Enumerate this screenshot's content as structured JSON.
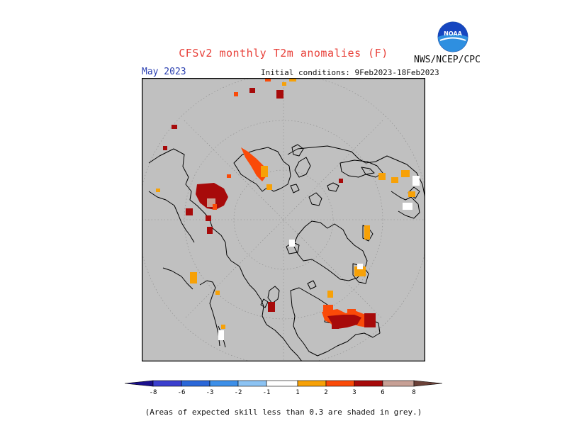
{
  "header": {
    "title": "CFSv2 monthly T2m anomalies (F)",
    "organization": "NWS/NCEP/CPC",
    "logo_text": "NOAA",
    "valid_month": "May 2023",
    "initial_conditions": "Initial conditions: 9Feb2023-18Feb2023"
  },
  "legend": {
    "labels": [
      "-8",
      "-6",
      "-3",
      "-2",
      "-1",
      "1",
      "2",
      "3",
      "6",
      "8"
    ],
    "colors": {
      "lt_-8": "#1a0f8c",
      "-8_-6": "#3b3fce",
      "-6_-3": "#2b67d8",
      "-3_-2": "#3d8fe8",
      "-2_-1": "#8cc3f3",
      "-1_1": "#ffffff",
      "1_2": "#f7a107",
      "2_3": "#fa4a08",
      "3_6": "#a70a0a",
      "6_8": "#c7a095",
      "gt_8": "#6b4138"
    }
  },
  "footnote": "(Areas of expected skill less than 0.3 are shaded in grey.)",
  "map_colors": {
    "low_skill_grey": "#c0c0c0",
    "coastline": "#000000",
    "graticule": "#8a8a8a"
  }
}
